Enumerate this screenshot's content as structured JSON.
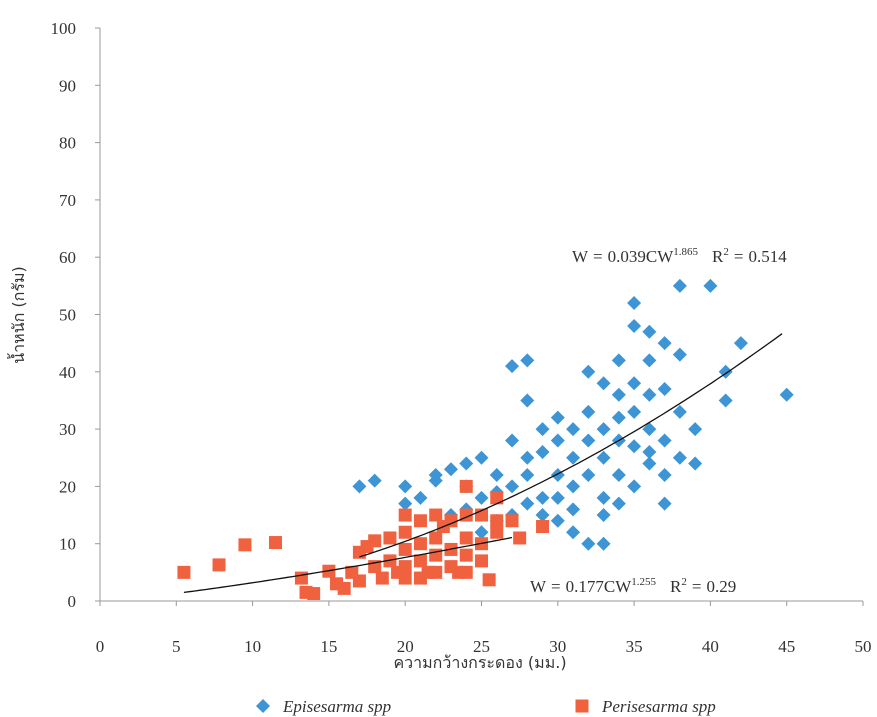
{
  "chart_data": {
    "type": "scatter",
    "x_label": "ความกว้างกระดอง (มม.)",
    "y_label": "น้ำหนัก (กรัม)",
    "xlim": [
      0,
      50
    ],
    "xticks": [
      0,
      5,
      10,
      15,
      20,
      25,
      30,
      35,
      40,
      45,
      50
    ],
    "ylim": [
      0,
      100
    ],
    "yticks": [
      0,
      10,
      20,
      30,
      40,
      50,
      60,
      70,
      80,
      90,
      100
    ],
    "grid": false,
    "series": [
      {
        "name": "Episesarma spp",
        "color": "#3d95d5",
        "marker": "diamond",
        "x": [
          17,
          18,
          20,
          20,
          21,
          22,
          22,
          23,
          24,
          24,
          25,
          25,
          26,
          26,
          27,
          27,
          27,
          28,
          28,
          28,
          28,
          29,
          29,
          29,
          30,
          30,
          30,
          30,
          31,
          31,
          31,
          31,
          32,
          32,
          32,
          32,
          32,
          33,
          33,
          33,
          33,
          33,
          34,
          34,
          34,
          34,
          34,
          35,
          35,
          35,
          35,
          35,
          35,
          36,
          36,
          36,
          36,
          37,
          37,
          37,
          37,
          37,
          38,
          38,
          38,
          38,
          39,
          39,
          40,
          41,
          41,
          42,
          45,
          27,
          28,
          29,
          26,
          25,
          24,
          23,
          30,
          31,
          33,
          36,
          34,
          36
        ],
        "values": [
          20,
          21,
          20,
          17,
          18,
          21,
          22,
          23,
          24,
          20,
          25,
          18,
          22,
          19,
          28,
          41,
          20,
          35,
          42,
          25,
          22,
          30,
          26,
          18,
          32,
          28,
          22,
          14,
          30,
          25,
          20,
          16,
          40,
          33,
          28,
          22,
          10,
          10,
          38,
          30,
          25,
          18,
          36,
          32,
          28,
          22,
          17,
          48,
          52,
          38,
          33,
          27,
          20,
          42,
          36,
          30,
          24,
          45,
          37,
          28,
          17,
          22,
          55,
          43,
          33,
          25,
          30,
          24,
          55,
          40,
          35,
          45,
          36,
          15,
          17,
          15,
          14,
          12,
          16,
          15,
          18,
          12,
          15,
          26,
          42,
          47
        ]
      },
      {
        "name": "Perisesarma spp",
        "color": "#f0623f",
        "marker": "square",
        "x": [
          5.5,
          7.8,
          9.5,
          11.5,
          13.2,
          13.5,
          14,
          15,
          15.5,
          16,
          16.5,
          17,
          17,
          17.5,
          18,
          18,
          18.5,
          19,
          19,
          19.5,
          20,
          20,
          20,
          20,
          20,
          21,
          21,
          21,
          21,
          21.5,
          22,
          22,
          22,
          22,
          22.5,
          23,
          23,
          23,
          23.5,
          24,
          24,
          24,
          24,
          24,
          25,
          25,
          25,
          25.5,
          26,
          26,
          26,
          27,
          27.5,
          29
        ],
        "values": [
          5,
          6.3,
          9.8,
          10.2,
          4,
          1.5,
          1.3,
          5.2,
          3,
          2.2,
          5,
          8.5,
          3.5,
          9.5,
          10.5,
          6,
          4,
          11,
          7,
          5,
          15,
          12,
          9,
          6,
          4,
          14,
          10,
          7,
          4,
          5,
          15,
          11,
          8,
          5,
          13,
          14,
          9,
          6,
          5,
          20,
          15,
          11,
          8,
          5,
          15,
          10,
          7,
          3.7,
          18,
          12,
          14,
          14,
          11,
          13
        ]
      }
    ],
    "trendlines": [
      {
        "lhs": "W",
        "eq": "=",
        "coef": 0.039,
        "var": "CW",
        "exponent": 1.865,
        "r2_symbol": "R",
        "r2_power": 2,
        "r2": 0.514,
        "x_range": [
          17,
          44.7
        ]
      },
      {
        "lhs": "W",
        "eq": "=",
        "coef": 0.177,
        "var": "CW",
        "exponent": 1.255,
        "r2_symbol": "R",
        "r2_power": 2,
        "r2": 0.29,
        "x_range": [
          5.5,
          27
        ]
      }
    ]
  }
}
